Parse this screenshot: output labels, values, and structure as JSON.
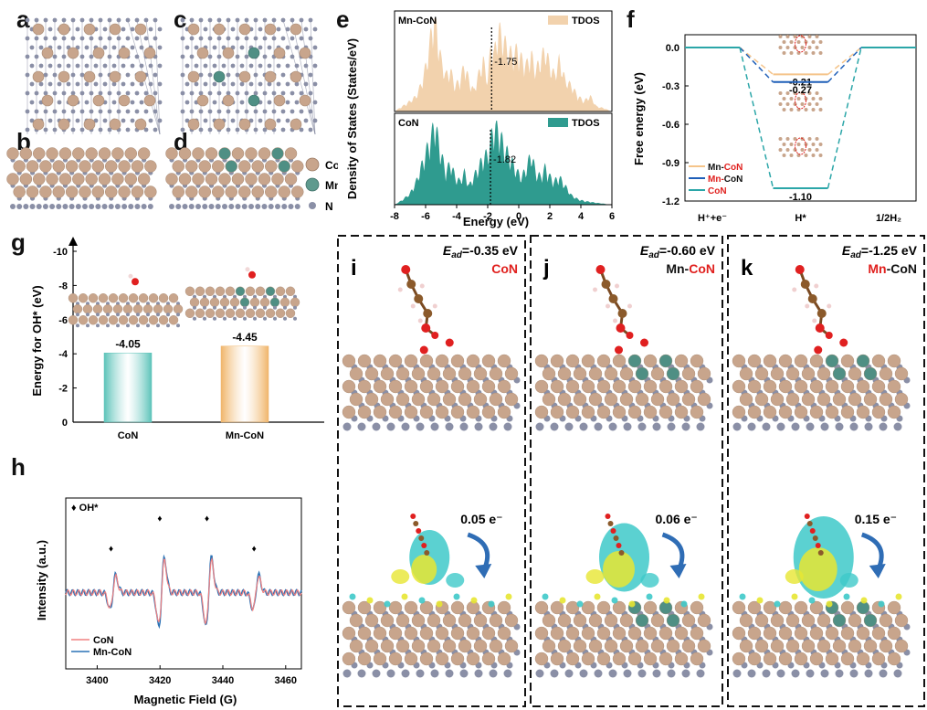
{
  "panel_labels": {
    "a": "a",
    "b": "b",
    "c": "c",
    "d": "d",
    "e": "e",
    "f": "f",
    "g": "g",
    "h": "h",
    "i": "i",
    "j": "j",
    "k": "k"
  },
  "structure_legend": [
    {
      "label": "Co",
      "color": "#c8a58c"
    },
    {
      "label": "Mn",
      "color": "#5f9a8e"
    },
    {
      "label": "N",
      "color": "#8a8fa6"
    }
  ],
  "colors": {
    "co": "#c8a58c",
    "mn": "#4f8f84",
    "n": "#8a8fa6",
    "o": "#e02020",
    "c": "#8b5a2b",
    "tdos_mn": "#f2d2ad",
    "tdos_co": "#2f9b8f",
    "accent_red": "#e0201e",
    "mnCoN_orange": "#f5c48a",
    "mnCoN_blue": "#1f5fb8",
    "coN_teal": "#2ba6a8",
    "bar_teal": "#5cc3b9",
    "bar_orange": "#f0b56a",
    "epr_red": "#f08080",
    "epr_blue": "#2a72b5"
  },
  "chart_data": [
    {
      "panel": "e",
      "type": "area",
      "xlabel": "Energy (eV)",
      "ylabel": "Density of States (States/eV)",
      "xlim": [
        -8,
        6
      ],
      "x_ticks": [
        "-8",
        "-6",
        "-4",
        "-2",
        "0",
        "2",
        "4",
        "6"
      ],
      "series": [
        {
          "name": "Mn-CoN",
          "legend": "TDOS",
          "d_band_center": -1.75,
          "d_band_label": "-1.75",
          "x": [
            -8,
            -7.5,
            -7,
            -6.6,
            -6.2,
            -5.9,
            -5.6,
            -5.4,
            -5.2,
            -5.0,
            -4.7,
            -4.4,
            -4.1,
            -3.8,
            -3.5,
            -3.2,
            -2.9,
            -2.6,
            -2.3,
            -2.0,
            -1.8,
            -1.6,
            -1.3,
            -1.0,
            -0.7,
            -0.4,
            -0.1,
            0.2,
            0.5,
            0.8,
            1.1,
            1.4,
            1.7,
            2.0,
            2.3,
            2.6,
            3.0,
            3.4,
            3.8,
            4.2,
            4.6,
            5.0,
            5.5,
            6
          ],
          "y": [
            0,
            0.05,
            0.1,
            0.15,
            0.3,
            0.5,
            0.8,
            0.95,
            0.7,
            0.5,
            0.35,
            0.4,
            0.25,
            0.3,
            0.45,
            0.3,
            0.2,
            0.35,
            0.5,
            0.3,
            0.65,
            0.55,
            0.8,
            0.7,
            0.6,
            0.55,
            0.6,
            0.5,
            0.45,
            0.55,
            0.4,
            0.5,
            0.6,
            0.45,
            0.35,
            0.5,
            0.3,
            0.25,
            0.15,
            0.1,
            0.15,
            0.05,
            0.03,
            0
          ]
        },
        {
          "name": "CoN",
          "legend": "TDOS",
          "d_band_center": -1.82,
          "d_band_label": "-1.82",
          "x": [
            -8,
            -7.5,
            -7,
            -6.6,
            -6.2,
            -5.9,
            -5.6,
            -5.4,
            -5.2,
            -5.0,
            -4.7,
            -4.4,
            -4.1,
            -3.8,
            -3.5,
            -3.2,
            -2.9,
            -2.6,
            -2.3,
            -2.0,
            -1.8,
            -1.6,
            -1.3,
            -1.0,
            -0.7,
            -0.4,
            -0.1,
            0.2,
            0.5,
            0.8,
            1.1,
            1.4,
            1.7,
            2.0,
            2.3,
            2.6,
            3.0,
            3.4,
            3.8,
            4.2,
            4.6,
            5.0,
            5.5,
            6
          ],
          "y": [
            0,
            0.05,
            0.12,
            0.25,
            0.45,
            0.6,
            0.75,
            0.9,
            0.7,
            0.55,
            0.35,
            0.45,
            0.3,
            0.25,
            0.35,
            0.2,
            0.3,
            0.4,
            0.5,
            0.55,
            0.7,
            0.85,
            0.8,
            0.65,
            0.55,
            0.45,
            0.35,
            0.3,
            0.4,
            0.55,
            0.35,
            0.3,
            0.4,
            0.3,
            0.25,
            0.3,
            0.2,
            0.1,
            0.06,
            0.04,
            0.03,
            0.02,
            0.01,
            0
          ]
        }
      ]
    },
    {
      "panel": "f",
      "type": "line",
      "ylabel": "Free energy (eV)",
      "ylim": [
        -1.2,
        0.1
      ],
      "y_ticks": [
        "0.0",
        "-0.3",
        "-0.6",
        "-0.9",
        "-1.2"
      ],
      "categories": [
        "H⁺+e⁻",
        "H*",
        "1/2H₂"
      ],
      "series": [
        {
          "name": "Mn-CoN",
          "prefix": "Mn-",
          "suffix": "CoN",
          "values": [
            0,
            -0.21,
            0
          ],
          "value_label": "-0.21"
        },
        {
          "name": "Mn-CoN",
          "prefix": "Mn-",
          "suffix": "CoN",
          "values": [
            0,
            -0.27,
            0
          ],
          "value_label": "-0.27"
        },
        {
          "name": "CoN",
          "prefix": "",
          "suffix": "CoN",
          "values": [
            0,
            -1.1,
            0
          ],
          "value_label": "-1.10"
        }
      ]
    },
    {
      "panel": "g",
      "type": "bar",
      "ylabel": "Energy for OH* (eV)",
      "ylim": [
        0,
        -10
      ],
      "y_ticks": [
        "-10",
        "-8",
        "-6",
        "-4",
        "-2",
        "0"
      ],
      "categories": [
        "CoN",
        "Mn-CoN"
      ],
      "values": [
        -4.05,
        -4.45
      ],
      "value_labels": [
        "-4.05",
        "-4.45"
      ]
    },
    {
      "panel": "h",
      "type": "line",
      "xlabel": "Magnetic Field (G)",
      "ylabel": "Intensity (a.u.)",
      "xlim": [
        3390,
        3465
      ],
      "x_ticks": [
        "3400",
        "3420",
        "3440",
        "3460"
      ],
      "marker_legend": "♦ OH*",
      "peak_centers": [
        3405,
        3420.5,
        3435.5,
        3450.5
      ],
      "peak_amplitudes": [
        1.0,
        2.0,
        2.0,
        1.0
      ],
      "series": [
        {
          "name": "CoN"
        },
        {
          "name": "Mn-CoN"
        }
      ]
    }
  ],
  "adsorption_panels": [
    {
      "id": "i",
      "ead_prefix": "E",
      "ead_sub": "ad",
      "ead_value": "=-0.35 eV",
      "label_prefix": "",
      "label_suffix": "CoN",
      "label_red_part": "CoN",
      "charge": "0.05 e⁻"
    },
    {
      "id": "j",
      "ead_prefix": "E",
      "ead_sub": "ad",
      "ead_value": "=-0.60 eV",
      "label_prefix": "Mn-",
      "label_suffix": "CoN",
      "label_red_part": "CoN",
      "charge": "0.06 e⁻"
    },
    {
      "id": "k",
      "ead_prefix": "E",
      "ead_sub": "ad",
      "ead_value": "=-1.25 eV",
      "label_prefix": "Mn",
      "label_suffix": "-CoN",
      "label_red_part": "Mn",
      "charge": "0.15 e⁻"
    }
  ]
}
